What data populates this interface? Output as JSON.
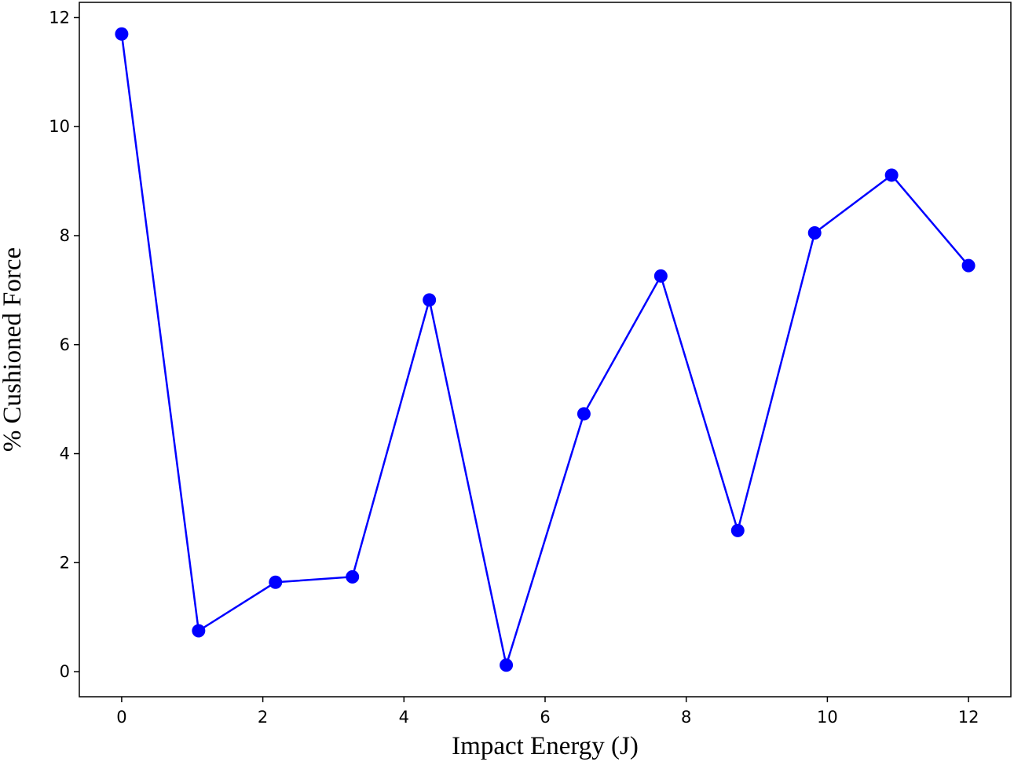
{
  "chart_data": {
    "type": "line",
    "x_label": "Impact Energy (J)",
    "y_label": "% Cushioned Force",
    "x": [
      0,
      1.09,
      2.18,
      3.27,
      4.36,
      5.45,
      6.55,
      7.64,
      8.73,
      9.82,
      10.91,
      12
    ],
    "series": [
      {
        "color": "#0000ff",
        "values": [
          11.7,
          0.75,
          1.64,
          1.74,
          6.82,
          0.12,
          4.73,
          7.26,
          2.59,
          8.05,
          9.11,
          7.45
        ]
      }
    ],
    "xlim": [
      -0.6,
      12.6
    ],
    "xticks": [
      0,
      2,
      4,
      6,
      8,
      10,
      12
    ],
    "ylim": [
      -0.46,
      12.28
    ],
    "yticks": [
      0,
      2,
      4,
      6,
      8,
      10,
      12
    ],
    "grid": false
  }
}
